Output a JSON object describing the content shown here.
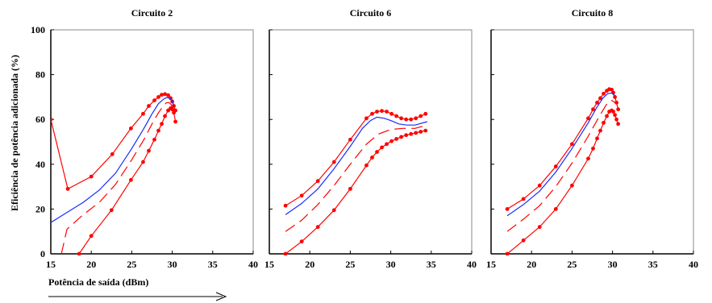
{
  "ylabel": "Eficiência de potência adicionada (%)",
  "xlabel": "Potência de saída (dBm)",
  "colors": {
    "red": "#ff0000",
    "blue": "#1a2bff",
    "axis": "#000000",
    "frame": "#888888"
  },
  "chart_data": [
    {
      "type": "line",
      "title": "Circuito 2",
      "xlim": [
        15,
        40
      ],
      "ylim": [
        0,
        100
      ],
      "xticks": [
        "15",
        "20",
        "25",
        "30",
        "35",
        "40"
      ],
      "yticks": [
        "0",
        "20",
        "40",
        "60",
        "80",
        "100"
      ],
      "show_yticks": true,
      "series": [
        {
          "style": "red-dots",
          "x": [
            15,
            17.1,
            20,
            22.6,
            24.9,
            26.4,
            27.1,
            27.8,
            28.3,
            28.7,
            29.1,
            29.5,
            29.8,
            30.0,
            30.2,
            30.4
          ],
          "y": [
            60,
            29,
            34.5,
            44.5,
            56,
            62.5,
            66,
            68.5,
            70,
            71,
            71.3,
            70.8,
            69.5,
            68,
            66,
            64
          ]
        },
        {
          "style": "red-dots",
          "x": [
            18.5,
            20,
            22.5,
            24.9,
            26.4,
            27.1,
            27.8,
            28.3,
            28.7,
            29.1,
            29.5,
            29.8,
            30.0,
            30.2,
            30.4
          ],
          "y": [
            0,
            8,
            19.5,
            33,
            41,
            46,
            51,
            55,
            58,
            61.5,
            64,
            65,
            64.5,
            63,
            59
          ]
        },
        {
          "style": "blue-solid",
          "x": [
            15,
            17,
            19,
            21,
            23,
            25,
            26.5,
            27.5,
            28.3,
            28.9,
            29.3,
            29.7,
            30.0,
            30.2
          ],
          "y": [
            14,
            18.5,
            23,
            28.5,
            36,
            47,
            56,
            62.5,
            67,
            69,
            69.8,
            69.5,
            68.5,
            66
          ]
        },
        {
          "style": "red-dashed",
          "x": [
            16.3,
            17,
            19,
            21,
            23,
            25,
            26.5,
            27.5,
            28.3,
            28.9,
            29.3,
            29.6,
            29.9,
            30.1
          ],
          "y": [
            0,
            11,
            17.5,
            23,
            31,
            42,
            51,
            58,
            63,
            66,
            67.5,
            67.5,
            66.5,
            64
          ]
        }
      ]
    },
    {
      "type": "line",
      "title": "Circuito 6",
      "xlim": [
        15,
        40
      ],
      "ylim": [
        0,
        100
      ],
      "xticks": [
        "15",
        "20",
        "25",
        "30",
        "35",
        "40"
      ],
      "yticks": [
        "0",
        "20",
        "40",
        "60",
        "80",
        "100"
      ],
      "show_yticks": false,
      "series": [
        {
          "style": "red-dots",
          "x": [
            17,
            19,
            21,
            23,
            25,
            27,
            27.7,
            28.3,
            28.9,
            29.5,
            30.1,
            30.7,
            31.3,
            31.9,
            32.5,
            33.1,
            33.7,
            34.3
          ],
          "y": [
            21.5,
            26,
            32.5,
            41,
            51,
            60.5,
            62.5,
            63.5,
            63.8,
            63.5,
            62.5,
            61.5,
            60.5,
            60,
            60,
            60.5,
            61.5,
            62.5
          ]
        },
        {
          "style": "red-dots",
          "x": [
            17,
            19,
            21,
            23,
            25,
            27,
            27.7,
            28.3,
            28.9,
            29.5,
            30.1,
            30.7,
            31.3,
            31.9,
            32.5,
            33.1,
            33.7,
            34.3
          ],
          "y": [
            0,
            5.5,
            12,
            19.5,
            29,
            39.5,
            43,
            45.5,
            47.5,
            49,
            50.3,
            51.3,
            52.2,
            53,
            53.5,
            54,
            54.5,
            55
          ]
        },
        {
          "style": "blue-solid",
          "x": [
            17,
            19,
            21,
            23,
            25,
            26.5,
            27.5,
            28.3,
            29.2,
            30,
            31,
            32,
            33,
            34.5
          ],
          "y": [
            17.5,
            22.5,
            29,
            38,
            48,
            56,
            59.5,
            61,
            60.5,
            59.5,
            58,
            57.5,
            57.5,
            59
          ]
        },
        {
          "style": "red-dashed",
          "x": [
            17,
            19,
            21,
            23,
            25,
            27,
            28.5,
            30,
            31.5,
            33,
            34.5
          ],
          "y": [
            10,
            15,
            22,
            30.5,
            40,
            49,
            53.5,
            55.5,
            56,
            56,
            57.5
          ]
        }
      ]
    },
    {
      "type": "line",
      "title": "Circuito 8",
      "xlim": [
        15,
        40
      ],
      "ylim": [
        0,
        100
      ],
      "xticks": [
        "15",
        "20",
        "25",
        "30",
        "35",
        "40"
      ],
      "yticks": [
        "0",
        "20",
        "40",
        "60",
        "80",
        "100"
      ],
      "show_yticks": false,
      "series": [
        {
          "style": "red-dots",
          "x": [
            17,
            19,
            21,
            23,
            25,
            27,
            27.6,
            28.1,
            28.5,
            28.9,
            29.3,
            29.6,
            29.9,
            30.1,
            30.3,
            30.5,
            30.7
          ],
          "y": [
            20,
            24.5,
            30.5,
            39,
            49,
            60.5,
            64.5,
            67.5,
            69.5,
            71.5,
            72.8,
            73.5,
            73.3,
            72,
            70,
            67.5,
            64.5
          ]
        },
        {
          "style": "red-dots",
          "x": [
            17,
            19,
            21,
            23,
            25,
            27,
            27.6,
            28.1,
            28.5,
            28.9,
            29.3,
            29.6,
            29.9,
            30.1,
            30.3,
            30.5,
            30.7
          ],
          "y": [
            0,
            6,
            12,
            20,
            30.5,
            42.5,
            47,
            51.5,
            55,
            58.5,
            61.5,
            63.5,
            64,
            63.5,
            62,
            60,
            58
          ]
        },
        {
          "style": "blue-solid",
          "x": [
            17,
            19,
            21,
            23,
            25,
            27,
            28,
            28.8,
            29.4,
            29.9,
            30.3
          ],
          "y": [
            17,
            22,
            28,
            36.5,
            47,
            58.5,
            65,
            69.5,
            71.5,
            71.8,
            70.5
          ]
        },
        {
          "style": "red-dashed",
          "x": [
            17,
            19,
            21,
            23,
            25,
            27,
            28,
            28.8,
            29.4,
            29.9,
            30.3
          ],
          "y": [
            10,
            15.5,
            21.5,
            30,
            40.5,
            52.5,
            59,
            64,
            67.5,
            68.5,
            67.5
          ]
        }
      ]
    }
  ]
}
